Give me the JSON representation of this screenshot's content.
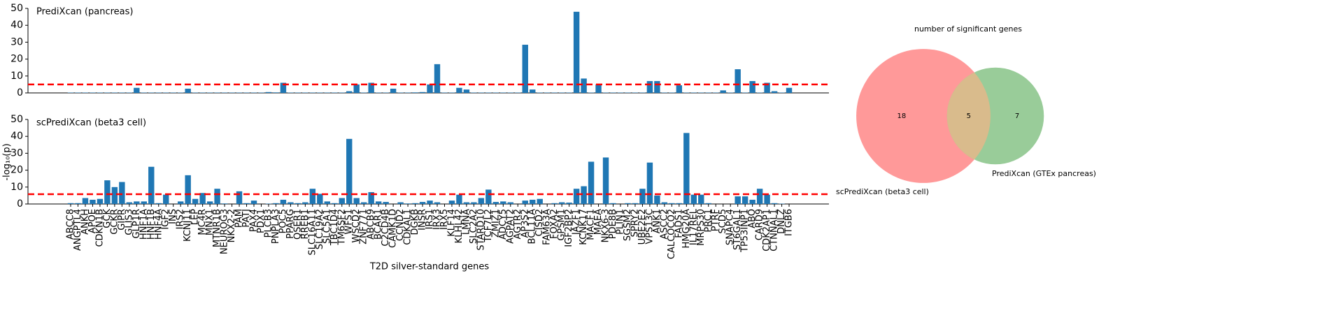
{
  "chart_data": [
    {
      "type": "bar",
      "x_label": "T2D silver-standard genes",
      "y_label": "-log₁₀(p)",
      "color": "#1f77b4",
      "threshold_color": "#ff0000",
      "categories": [
        "ABCC8",
        "ANGPTL4",
        "ANKH",
        "APOE",
        "CDKN1B",
        "GCK",
        "GCKR",
        "GIPR",
        "GLIS3",
        "GLP1R",
        "HNF1A",
        "HNF1B",
        "HNF4A",
        "IGF2",
        "INS",
        "IRS2",
        "KCNJ11",
        "LEP",
        "MC4R",
        "MNX1",
        "MTNR1B",
        "NEUROG3",
        "NKX2-2",
        "PAM",
        "PATJ",
        "PAX4",
        "PDX1",
        "PLCB3",
        "PNPLA3",
        "POC5",
        "PPARG",
        "QSER1",
        "RREB1",
        "SLC16A11",
        "SLC19A2",
        "SLC5A1",
        "TBC1D4",
        "TM6SF2",
        "WFS1",
        "WSCD2",
        "ZNF771",
        "ABCB9",
        "BCAR1",
        "C2CD4B",
        "CAMK1D",
        "CCND2",
        "CDKAL1",
        "DGKB",
        "INSR",
        "IRS1",
        "IRX3",
        "IRX5",
        "KLF14",
        "KLHL42",
        "LMNA",
        "SLC2A2",
        "STARD10",
        "TCF7L2",
        "ZMIZ1",
        "ADCY5",
        "AGPAT2",
        "AGTR2",
        "AP3S2",
        "BCL11A",
        "CISD2",
        "FAM63A",
        "FOXA2",
        "GPSM1",
        "IGF2BP2",
        "JAZF1",
        "KCNK17",
        "MACF1",
        "MAEA",
        "NKX6-3",
        "PDE8B",
        "PLIN1",
        "SGSM2",
        "SPRY2",
        "UBE2E2",
        "VPS13C",
        "ANK1",
        "ASCC2",
        "CALCOCO2",
        "FADS1",
        "HMG20A",
        "IL17REL",
        "MRPS30",
        "PRC1",
        "PTRF",
        "SCD5",
        "SNAPC4",
        "ST6GAL1",
        "TP53INP1",
        "ABO",
        "CARD9",
        "CDK2AP1",
        "CTNNAL1",
        "DNLZ",
        "ITGB6"
      ],
      "panels": [
        {
          "title": "PrediXcan (pancreas)",
          "ylim": [
            0,
            50
          ],
          "yticks": [
            0,
            10,
            20,
            30,
            40,
            50
          ],
          "threshold": 5,
          "values": [
            0.2,
            0.2,
            0.2,
            0.2,
            0.2,
            0.2,
            0.2,
            0.2,
            0.2,
            3,
            0.2,
            0.2,
            0.2,
            0.2,
            0.2,
            0.2,
            2.5,
            0.2,
            0.2,
            0.2,
            0.2,
            0.2,
            0.2,
            0.2,
            0.2,
            0.2,
            0.2,
            0.5,
            0.3,
            6,
            0.2,
            0.2,
            0.2,
            0.2,
            0.2,
            0.2,
            0.2,
            0.2,
            1,
            5,
            0.2,
            6,
            0.2,
            0.2,
            2.5,
            0.2,
            0.2,
            0.3,
            0.5,
            5,
            17,
            0.2,
            0.2,
            3,
            2,
            0.2,
            0.2,
            0.2,
            0.2,
            0.2,
            0.2,
            0.2,
            28.5,
            2,
            0.2,
            0.2,
            0.2,
            0.2,
            0.2,
            48,
            8.5,
            0.2,
            5,
            0.2,
            0.2,
            0.2,
            0.2,
            0.2,
            0.2,
            7,
            7,
            0.2,
            0.2,
            4.5,
            0.2,
            0.2,
            0.2,
            0.2,
            0.2,
            1.5,
            0.2,
            14,
            0.2,
            7,
            0.2,
            6,
            1,
            0.2,
            3
          ]
        },
        {
          "title": "scPrediXcan (beta3 cell)",
          "ylim": [
            0,
            50
          ],
          "yticks": [
            0,
            10,
            20,
            30,
            40,
            50
          ],
          "threshold": 5.8,
          "values": [
            0.5,
            0.5,
            3.5,
            2.5,
            3,
            14,
            10,
            13,
            1,
            1.5,
            1.5,
            22,
            0.5,
            5.5,
            0,
            1.5,
            17,
            3,
            6.5,
            1.5,
            9,
            0.3,
            0,
            7.5,
            0.5,
            2,
            0,
            0.2,
            0.5,
            2.5,
            1,
            0.5,
            1,
            9,
            6,
            1.5,
            0.5,
            3.5,
            38.5,
            3.5,
            1,
            7,
            1.5,
            1.2,
            0,
            1,
            0.3,
            0.5,
            1.2,
            2,
            1,
            0,
            2,
            5.5,
            1,
            1,
            3.5,
            8.5,
            1.2,
            1.5,
            1,
            0,
            2,
            2.5,
            3,
            0,
            0.5,
            1,
            0.8,
            9,
            10.5,
            25,
            0,
            27.5,
            0.5,
            0,
            0.5,
            0.5,
            9,
            24.5,
            5,
            1,
            0.5,
            0.5,
            42,
            5.5,
            5.5,
            0.5,
            0,
            0,
            0,
            4.5,
            4.5,
            2.5,
            9,
            5.5,
            0.5,
            0.2,
            0
          ]
        }
      ]
    },
    {
      "type": "venn",
      "title": "number of significant genes",
      "overlap": 5,
      "overlap_color": "#d9bb8c",
      "sets": [
        {
          "name": "scPrediXcan (beta3 cell)",
          "only": 18,
          "color": "#ff9999"
        },
        {
          "name": "PrediXcan (GTEx pancreas)",
          "only": 7,
          "color": "#99cc99"
        }
      ]
    }
  ]
}
